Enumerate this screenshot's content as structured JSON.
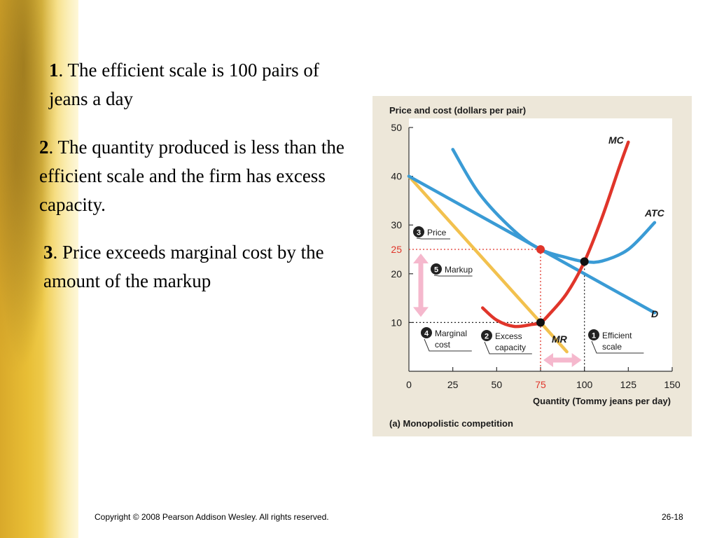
{
  "slide": {
    "points": [
      {
        "num": "1",
        "text": ". The efficient scale is 100 pairs of jeans a day"
      },
      {
        "num": "2",
        "text": ". The quantity produced is less than the efficient scale and the firm has excess capacity."
      },
      {
        "num": "3",
        "text": ". Price exceeds marginal cost by the amount of the markup"
      }
    ],
    "copyright": "Copyright © 2008 Pearson Addison Wesley. All rights reserved.",
    "page_number": "26-18"
  },
  "colors": {
    "panel": "#ede7d9",
    "plot": "#ffffff",
    "mc": "#e0352a",
    "atc": "#3a9bd5",
    "demand": "#3a9bd5",
    "mr": "#f2c14e",
    "highlight": "#e0352a",
    "arrow": "#f5b8cd"
  },
  "chart_data": {
    "type": "line",
    "ylabel": "Price and cost (dollars per pair)",
    "xlabel": "Quantity (Tommy jeans per day)",
    "caption": "(a) Monopolistic competition",
    "xlim": [
      0,
      150
    ],
    "ylim": [
      0,
      50
    ],
    "x_ticks": [
      0,
      25,
      50,
      75,
      100,
      125,
      150
    ],
    "y_ticks": [
      10,
      20,
      30,
      40,
      50
    ],
    "highlight_y_tick": 25,
    "highlight_x_tick": 75,
    "series": [
      {
        "name": "MC",
        "points": [
          [
            42,
            13
          ],
          [
            50,
            10.5
          ],
          [
            60,
            9.2
          ],
          [
            70,
            9.6
          ],
          [
            75,
            10
          ],
          [
            80,
            11.7
          ],
          [
            90,
            16
          ],
          [
            100,
            22.5
          ],
          [
            110,
            31.5
          ],
          [
            120,
            42
          ],
          [
            125,
            47
          ]
        ]
      },
      {
        "name": "ATC",
        "points": [
          [
            25,
            45.5
          ],
          [
            40,
            36.5
          ],
          [
            60,
            28.8
          ],
          [
            75,
            25
          ],
          [
            90,
            23.3
          ],
          [
            100,
            22.5
          ],
          [
            110,
            22.6
          ],
          [
            125,
            25
          ],
          [
            140,
            30.5
          ]
        ]
      },
      {
        "name": "D",
        "points": [
          [
            0,
            40
          ],
          [
            75,
            25
          ],
          [
            140,
            12
          ]
        ]
      },
      {
        "name": "MR",
        "points": [
          [
            0,
            40
          ],
          [
            90,
            4
          ]
        ]
      }
    ],
    "points_marked": [
      {
        "label": "price",
        "x": 75,
        "y": 25,
        "color": "red"
      },
      {
        "label": "marginal cost",
        "x": 75,
        "y": 10,
        "color": "black"
      },
      {
        "label": "efficient scale",
        "x": 100,
        "y": 22.5,
        "color": "black"
      }
    ],
    "callouts": [
      {
        "num": "3",
        "text": "Price"
      },
      {
        "num": "5",
        "text": "Markup"
      },
      {
        "num": "4",
        "text": "Marginal cost"
      },
      {
        "num": "2",
        "text": "Excess capacity"
      },
      {
        "num": "1",
        "text": "Efficient scale"
      }
    ]
  }
}
